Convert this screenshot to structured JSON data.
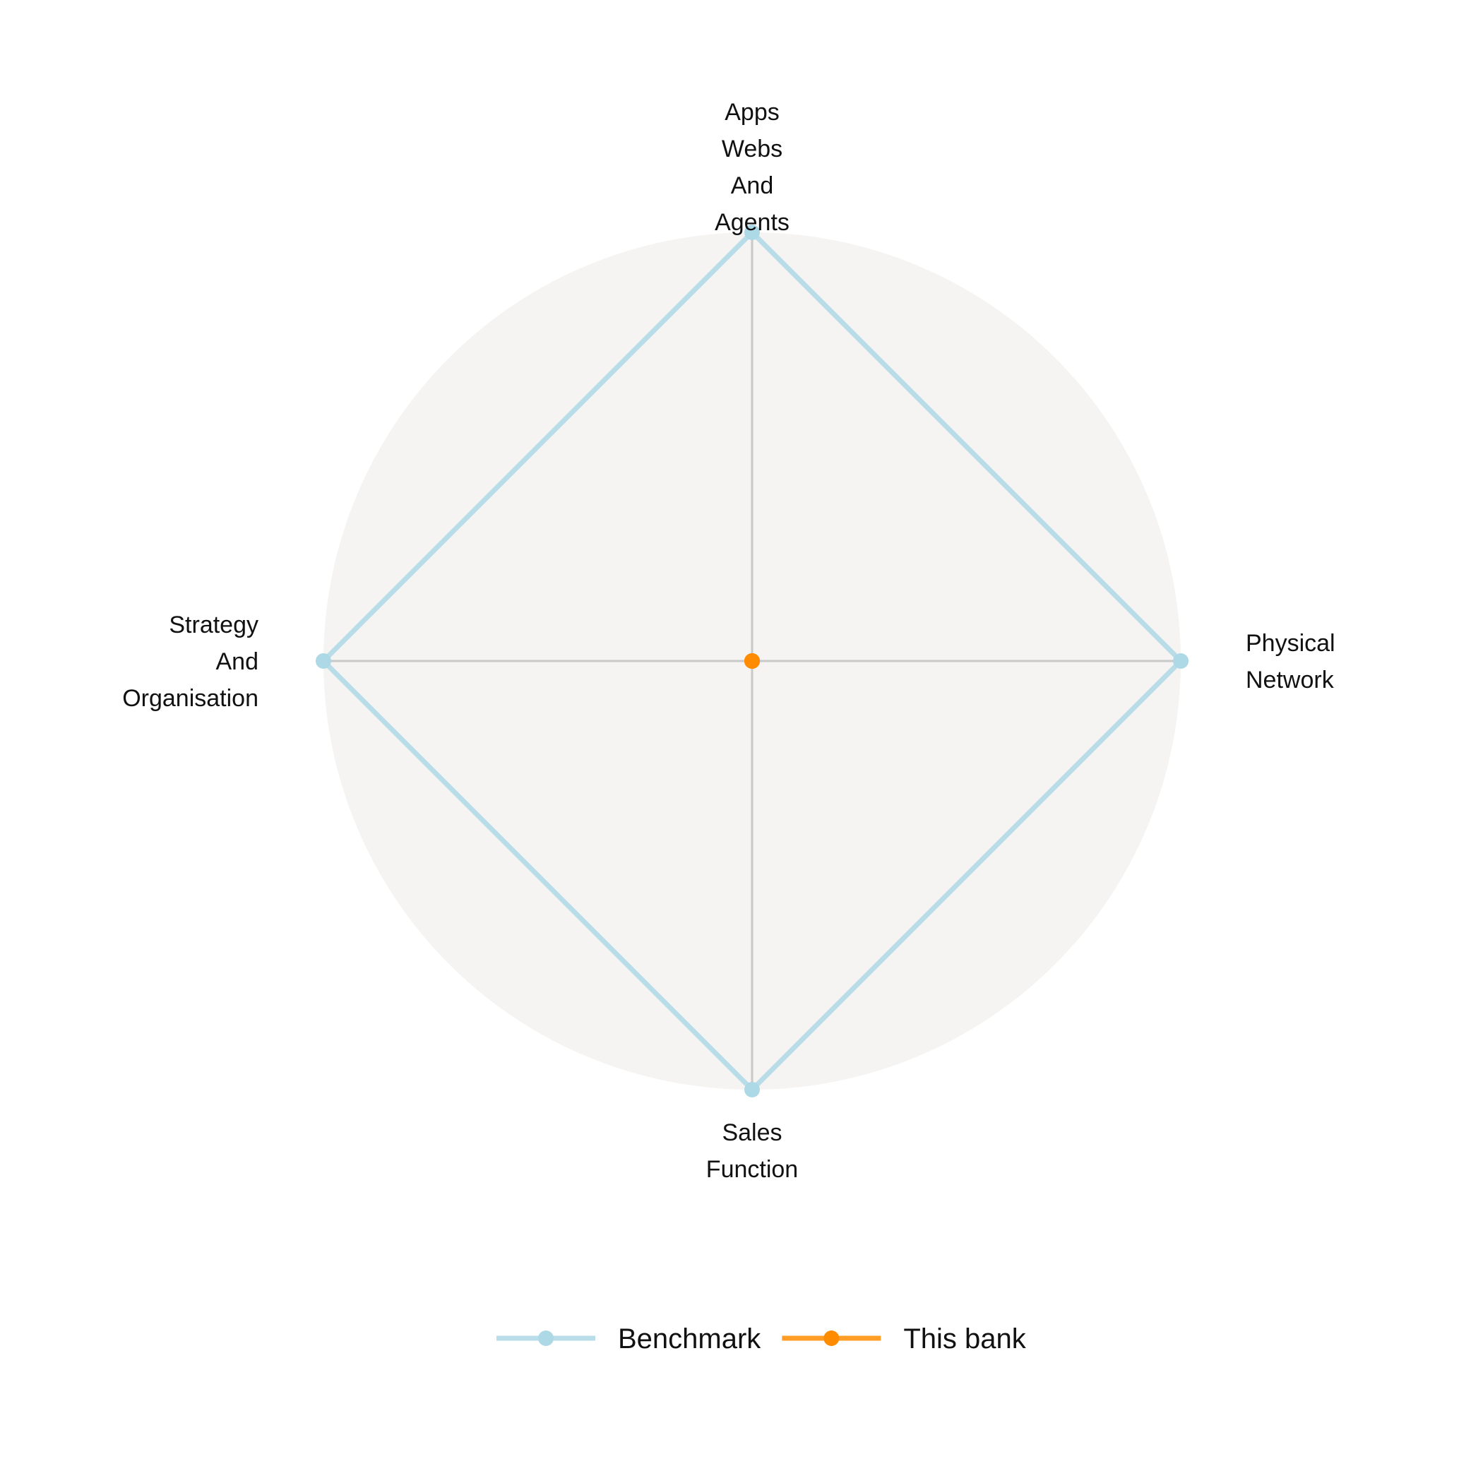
{
  "chart_data": {
    "type": "radar",
    "axes": [
      {
        "label_lines": [
          "Apps",
          "Webs",
          "And",
          "Agents"
        ]
      },
      {
        "label_lines": [
          "Physical",
          "Network"
        ]
      },
      {
        "label_lines": [
          "Sales",
          "Function"
        ]
      },
      {
        "label_lines": [
          "Strategy",
          "And",
          "Organisation"
        ]
      }
    ],
    "range": [
      0,
      1
    ],
    "series": [
      {
        "name": "Benchmark",
        "color": "#add8e6",
        "values": [
          1,
          1,
          1,
          1
        ]
      },
      {
        "name": "This bank",
        "color": "#ff8c00",
        "values": [
          0,
          0,
          0,
          0
        ]
      }
    ],
    "background_color": "#f5f4f2",
    "gridline_color": "#c8c8c8",
    "legend": {
      "position": "bottom"
    }
  }
}
